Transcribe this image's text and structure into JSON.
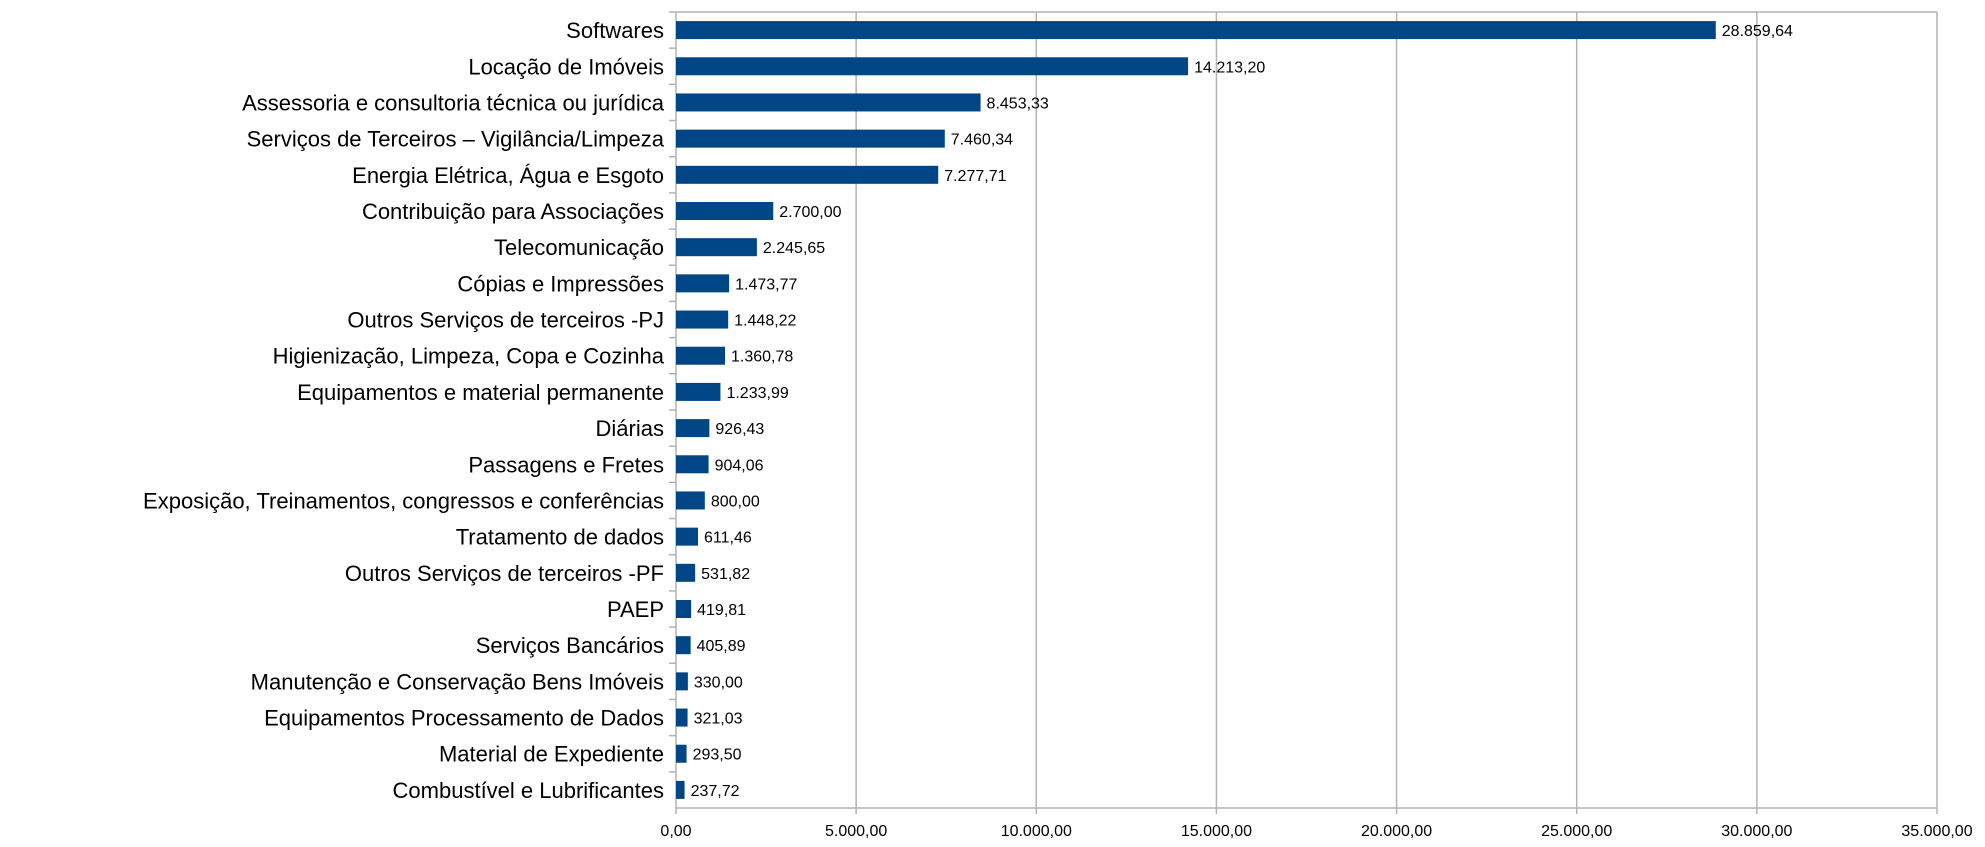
{
  "chart_data": {
    "type": "bar",
    "orientation": "horizontal",
    "categories": [
      "Softwares",
      "Locação de Imóveis",
      "Assessoria e consultoria técnica ou jurídica",
      "Serviços de Terceiros – Vigilância/Limpeza",
      "Energia Elétrica, Água e Esgoto",
      "Contribuição para Associações",
      "Telecomunicação",
      "Cópias e Impressões",
      "Outros Serviços de terceiros -PJ",
      "Higienização, Limpeza, Copa e Cozinha",
      "Equipamentos e material permanente",
      "Diárias",
      "Passagens e Fretes",
      "Exposição, Treinamentos, congressos e conferências",
      "Tratamento de dados",
      "Outros Serviços de terceiros -PF",
      "PAEP",
      "Serviços Bancários",
      "Manutenção e Conservação Bens Imóveis",
      "Equipamentos Processamento de Dados",
      "Material de Expediente",
      "Combustível e Lubrificantes"
    ],
    "values": [
      28859.64,
      14213.2,
      8453.33,
      7460.34,
      7277.71,
      2700.0,
      2245.65,
      1473.77,
      1448.22,
      1360.78,
      1233.99,
      926.43,
      904.06,
      800.0,
      611.46,
      531.82,
      419.81,
      405.89,
      330.0,
      321.03,
      293.5,
      237.72
    ],
    "value_labels": [
      "28.859,64",
      "14.213,20",
      "8.453,33",
      "7.460,34",
      "7.277,71",
      "2.700,00",
      "2.245,65",
      "1.473,77",
      "1.448,22",
      "1.360,78",
      "1.233,99",
      "926,43",
      "904,06",
      "800,00",
      "611,46",
      "531,82",
      "419,81",
      "405,89",
      "330,00",
      "321,03",
      "293,50",
      "237,72"
    ],
    "xticks": [
      0,
      5000,
      10000,
      15000,
      20000,
      25000,
      30000,
      35000
    ],
    "xtick_labels": [
      "0,00",
      "5.000,00",
      "10.000,00",
      "15.000,00",
      "20.000,00",
      "25.000,00",
      "30.000,00",
      "35.000,00"
    ],
    "xlim": [
      0,
      35000
    ],
    "grid": true,
    "legend": false,
    "bar_color": "#004586"
  }
}
